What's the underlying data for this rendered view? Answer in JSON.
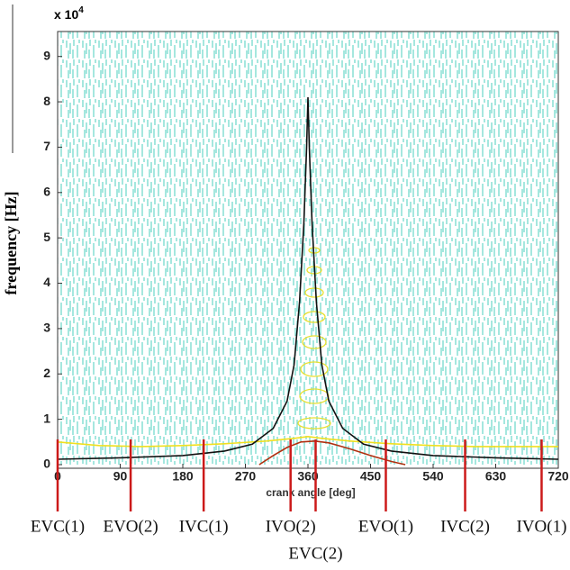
{
  "chart_data": {
    "type": "line",
    "y_label": "frequency [Hz]",
    "x_label": "crank angle [deg]",
    "y_multiplier": "x 10",
    "y_multiplier_exponent": "4",
    "xlim": [
      0,
      720
    ],
    "xticks": [
      0,
      90,
      180,
      270,
      360,
      450,
      540,
      630,
      720
    ],
    "ylim": [
      0,
      9.55
    ],
    "yticks": [
      0,
      1,
      2,
      3,
      4,
      5,
      6,
      7,
      8,
      9
    ],
    "series": [
      {
        "color": "#f0e020",
        "x": [
          0,
          60,
          120,
          180,
          240,
          300,
          340,
          360,
          380,
          420,
          480,
          540,
          600,
          660,
          720
        ],
        "values": [
          0.5,
          0.42,
          0.4,
          0.42,
          0.46,
          0.52,
          0.58,
          0.62,
          0.58,
          0.52,
          0.46,
          0.42,
          0.4,
          0.4,
          0.4
        ]
      },
      {
        "color": "#111111",
        "x": [
          0,
          90,
          180,
          240,
          280,
          310,
          330,
          340,
          348,
          354,
          358,
          360,
          362,
          366,
          372,
          380,
          390,
          410,
          440,
          480,
          540,
          630,
          720
        ],
        "values": [
          0.12,
          0.15,
          0.2,
          0.3,
          0.45,
          0.8,
          1.4,
          2.2,
          3.6,
          5.3,
          7.0,
          8.1,
          7.0,
          5.3,
          3.6,
          2.2,
          1.4,
          0.8,
          0.45,
          0.3,
          0.2,
          0.15,
          0.12
        ]
      },
      {
        "color": "#b03010",
        "x": [
          290,
          310,
          330,
          350,
          370,
          390,
          420,
          450,
          480,
          500
        ],
        "values": [
          0,
          0.2,
          0.38,
          0.5,
          0.52,
          0.48,
          0.35,
          0.2,
          0.07,
          0
        ]
      }
    ],
    "annotations": [
      {
        "label": "EVC(1)",
        "x": 0
      },
      {
        "label": "EVO(2)",
        "x": 105
      },
      {
        "label": "IVC(1)",
        "x": 210
      },
      {
        "label": "IVO(2)",
        "x": 335
      },
      {
        "label": "EVC(2)",
        "x": 371
      },
      {
        "label": "EVO(1)",
        "x": 472
      },
      {
        "label": "IVC(2)",
        "x": 586
      },
      {
        "label": "IVO(1)",
        "x": 696
      }
    ],
    "annotation_color": "#cc1a1a"
  }
}
